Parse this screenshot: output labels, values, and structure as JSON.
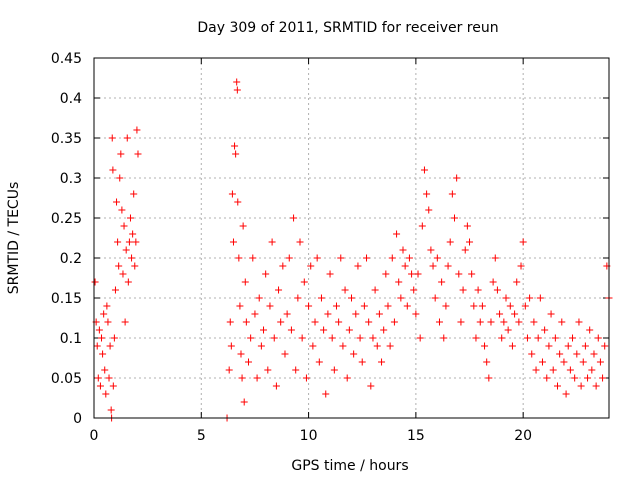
{
  "chart_data": {
    "type": "scatter",
    "title": "Day 309 of 2011, SRMTID for receiver reun",
    "xlabel": "GPS time / hours",
    "ylabel": "SRMTID / TECUs",
    "xlim": [
      0,
      24
    ],
    "ylim": [
      0,
      0.45
    ],
    "x_ticks": [
      0,
      5,
      10,
      15,
      20
    ],
    "x_tick_labels": [
      "0",
      "5",
      "10",
      "15",
      "20"
    ],
    "y_ticks": [
      0,
      0.05,
      0.1,
      0.15,
      0.2,
      0.25,
      0.3,
      0.35,
      0.4,
      0.45
    ],
    "y_tick_labels": [
      "0",
      "0.05",
      "0.1",
      "0.15",
      "0.2",
      "0.25",
      "0.3",
      "0.35",
      "0.4",
      "0.45"
    ],
    "grid": true,
    "marker": "+",
    "color": "#ff0000",
    "series": [
      {
        "name": "SRMTID",
        "points": [
          [
            0.05,
            0.17
          ],
          [
            0.1,
            0.12
          ],
          [
            0.15,
            0.09
          ],
          [
            0.2,
            0.05
          ],
          [
            0.25,
            0.11
          ],
          [
            0.3,
            0.04
          ],
          [
            0.35,
            0.1
          ],
          [
            0.4,
            0.08
          ],
          [
            0.45,
            0.13
          ],
          [
            0.5,
            0.06
          ],
          [
            0.55,
            0.03
          ],
          [
            0.6,
            0.14
          ],
          [
            0.65,
            0.12
          ],
          [
            0.7,
            0.05
          ],
          [
            0.75,
            0.09
          ],
          [
            0.8,
            0.01
          ],
          [
            0.82,
            0.0
          ],
          [
            0.85,
            0.35
          ],
          [
            0.88,
            0.31
          ],
          [
            0.9,
            0.04
          ],
          [
            0.95,
            0.1
          ],
          [
            1.0,
            0.16
          ],
          [
            1.05,
            0.27
          ],
          [
            1.1,
            0.22
          ],
          [
            1.15,
            0.19
          ],
          [
            1.2,
            0.3
          ],
          [
            1.25,
            0.33
          ],
          [
            1.3,
            0.26
          ],
          [
            1.35,
            0.18
          ],
          [
            1.4,
            0.24
          ],
          [
            1.45,
            0.12
          ],
          [
            1.5,
            0.21
          ],
          [
            1.55,
            0.35
          ],
          [
            1.6,
            0.17
          ],
          [
            1.65,
            0.22
          ],
          [
            1.7,
            0.25
          ],
          [
            1.75,
            0.2
          ],
          [
            1.8,
            0.23
          ],
          [
            1.85,
            0.28
          ],
          [
            1.9,
            0.19
          ],
          [
            1.95,
            0.22
          ],
          [
            2.0,
            0.36
          ],
          [
            2.05,
            0.33
          ],
          [
            6.2,
            0.0
          ],
          [
            6.3,
            0.06
          ],
          [
            6.35,
            0.12
          ],
          [
            6.4,
            0.09
          ],
          [
            6.45,
            0.28
          ],
          [
            6.5,
            0.22
          ],
          [
            6.55,
            0.34
          ],
          [
            6.6,
            0.33
          ],
          [
            6.65,
            0.42
          ],
          [
            6.68,
            0.41
          ],
          [
            6.7,
            0.27
          ],
          [
            6.75,
            0.2
          ],
          [
            6.8,
            0.14
          ],
          [
            6.85,
            0.08
          ],
          [
            6.9,
            0.05
          ],
          [
            6.95,
            0.24
          ],
          [
            7.0,
            0.02
          ],
          [
            7.05,
            0.17
          ],
          [
            7.1,
            0.12
          ],
          [
            7.2,
            0.07
          ],
          [
            7.3,
            0.1
          ],
          [
            7.4,
            0.2
          ],
          [
            7.5,
            0.13
          ],
          [
            7.6,
            0.05
          ],
          [
            7.7,
            0.15
          ],
          [
            7.8,
            0.09
          ],
          [
            7.9,
            0.11
          ],
          [
            8.0,
            0.18
          ],
          [
            8.1,
            0.06
          ],
          [
            8.2,
            0.14
          ],
          [
            8.3,
            0.22
          ],
          [
            8.4,
            0.1
          ],
          [
            8.5,
            0.04
          ],
          [
            8.6,
            0.16
          ],
          [
            8.7,
            0.12
          ],
          [
            8.8,
            0.19
          ],
          [
            8.9,
            0.08
          ],
          [
            9.0,
            0.13
          ],
          [
            9.1,
            0.2
          ],
          [
            9.2,
            0.11
          ],
          [
            9.3,
            0.25
          ],
          [
            9.4,
            0.06
          ],
          [
            9.5,
            0.15
          ],
          [
            9.6,
            0.22
          ],
          [
            9.7,
            0.1
          ],
          [
            9.8,
            0.17
          ],
          [
            9.9,
            0.05
          ],
          [
            10.0,
            0.14
          ],
          [
            10.1,
            0.19
          ],
          [
            10.2,
            0.09
          ],
          [
            10.3,
            0.12
          ],
          [
            10.4,
            0.2
          ],
          [
            10.5,
            0.07
          ],
          [
            10.6,
            0.15
          ],
          [
            10.7,
            0.11
          ],
          [
            10.8,
            0.03
          ],
          [
            10.9,
            0.13
          ],
          [
            11.0,
            0.18
          ],
          [
            11.1,
            0.1
          ],
          [
            11.2,
            0.06
          ],
          [
            11.3,
            0.14
          ],
          [
            11.4,
            0.12
          ],
          [
            11.5,
            0.2
          ],
          [
            11.6,
            0.09
          ],
          [
            11.7,
            0.16
          ],
          [
            11.8,
            0.05
          ],
          [
            11.9,
            0.11
          ],
          [
            12.0,
            0.15
          ],
          [
            12.1,
            0.08
          ],
          [
            12.2,
            0.13
          ],
          [
            12.3,
            0.19
          ],
          [
            12.4,
            0.1
          ],
          [
            12.5,
            0.07
          ],
          [
            12.6,
            0.14
          ],
          [
            12.7,
            0.2
          ],
          [
            12.8,
            0.12
          ],
          [
            12.9,
            0.04
          ],
          [
            13.0,
            0.1
          ],
          [
            13.1,
            0.16
          ],
          [
            13.2,
            0.09
          ],
          [
            13.3,
            0.13
          ],
          [
            13.4,
            0.07
          ],
          [
            13.5,
            0.11
          ],
          [
            13.6,
            0.18
          ],
          [
            13.7,
            0.14
          ],
          [
            13.8,
            0.09
          ],
          [
            13.9,
            0.2
          ],
          [
            14.0,
            0.12
          ],
          [
            14.1,
            0.23
          ],
          [
            14.2,
            0.17
          ],
          [
            14.3,
            0.15
          ],
          [
            14.4,
            0.21
          ],
          [
            14.5,
            0.19
          ],
          [
            14.6,
            0.14
          ],
          [
            14.7,
            0.2
          ],
          [
            14.8,
            0.18
          ],
          [
            14.9,
            0.16
          ],
          [
            15.0,
            0.13
          ],
          [
            15.1,
            0.18
          ],
          [
            15.2,
            0.1
          ],
          [
            15.3,
            0.24
          ],
          [
            15.4,
            0.31
          ],
          [
            15.5,
            0.28
          ],
          [
            15.6,
            0.26
          ],
          [
            15.7,
            0.21
          ],
          [
            15.8,
            0.19
          ],
          [
            15.9,
            0.15
          ],
          [
            16.0,
            0.2
          ],
          [
            16.1,
            0.12
          ],
          [
            16.2,
            0.17
          ],
          [
            16.3,
            0.1
          ],
          [
            16.4,
            0.14
          ],
          [
            16.5,
            0.19
          ],
          [
            16.6,
            0.22
          ],
          [
            16.7,
            0.28
          ],
          [
            16.8,
            0.25
          ],
          [
            16.9,
            0.3
          ],
          [
            17.0,
            0.18
          ],
          [
            17.1,
            0.12
          ],
          [
            17.2,
            0.16
          ],
          [
            17.3,
            0.21
          ],
          [
            17.4,
            0.24
          ],
          [
            17.5,
            0.22
          ],
          [
            17.6,
            0.18
          ],
          [
            17.7,
            0.14
          ],
          [
            17.8,
            0.1
          ],
          [
            17.9,
            0.16
          ],
          [
            18.0,
            0.12
          ],
          [
            18.1,
            0.14
          ],
          [
            18.2,
            0.09
          ],
          [
            18.3,
            0.07
          ],
          [
            18.4,
            0.05
          ],
          [
            18.5,
            0.12
          ],
          [
            18.6,
            0.17
          ],
          [
            18.7,
            0.2
          ],
          [
            18.8,
            0.16
          ],
          [
            18.9,
            0.13
          ],
          [
            19.0,
            0.1
          ],
          [
            19.1,
            0.12
          ],
          [
            19.2,
            0.15
          ],
          [
            19.3,
            0.11
          ],
          [
            19.4,
            0.14
          ],
          [
            19.5,
            0.09
          ],
          [
            19.6,
            0.13
          ],
          [
            19.7,
            0.17
          ],
          [
            19.8,
            0.12
          ],
          [
            19.9,
            0.19
          ],
          [
            20.0,
            0.22
          ],
          [
            20.1,
            0.14
          ],
          [
            20.2,
            0.1
          ],
          [
            20.3,
            0.15
          ],
          [
            20.4,
            0.08
          ],
          [
            20.5,
            0.12
          ],
          [
            20.6,
            0.06
          ],
          [
            20.7,
            0.1
          ],
          [
            20.8,
            0.15
          ],
          [
            20.9,
            0.07
          ],
          [
            21.0,
            0.11
          ],
          [
            21.1,
            0.05
          ],
          [
            21.2,
            0.09
          ],
          [
            21.3,
            0.13
          ],
          [
            21.4,
            0.06
          ],
          [
            21.5,
            0.1
          ],
          [
            21.6,
            0.04
          ],
          [
            21.7,
            0.08
          ],
          [
            21.8,
            0.12
          ],
          [
            21.9,
            0.07
          ],
          [
            22.0,
            0.03
          ],
          [
            22.1,
            0.09
          ],
          [
            22.2,
            0.06
          ],
          [
            22.3,
            0.1
          ],
          [
            22.4,
            0.05
          ],
          [
            22.5,
            0.08
          ],
          [
            22.6,
            0.12
          ],
          [
            22.7,
            0.04
          ],
          [
            22.8,
            0.07
          ],
          [
            22.9,
            0.09
          ],
          [
            23.0,
            0.05
          ],
          [
            23.1,
            0.11
          ],
          [
            23.2,
            0.06
          ],
          [
            23.3,
            0.08
          ],
          [
            23.4,
            0.04
          ],
          [
            23.5,
            0.1
          ],
          [
            23.6,
            0.07
          ],
          [
            23.7,
            0.05
          ],
          [
            23.8,
            0.09
          ],
          [
            23.9,
            0.19
          ],
          [
            24.0,
            0.15
          ]
        ]
      }
    ]
  }
}
